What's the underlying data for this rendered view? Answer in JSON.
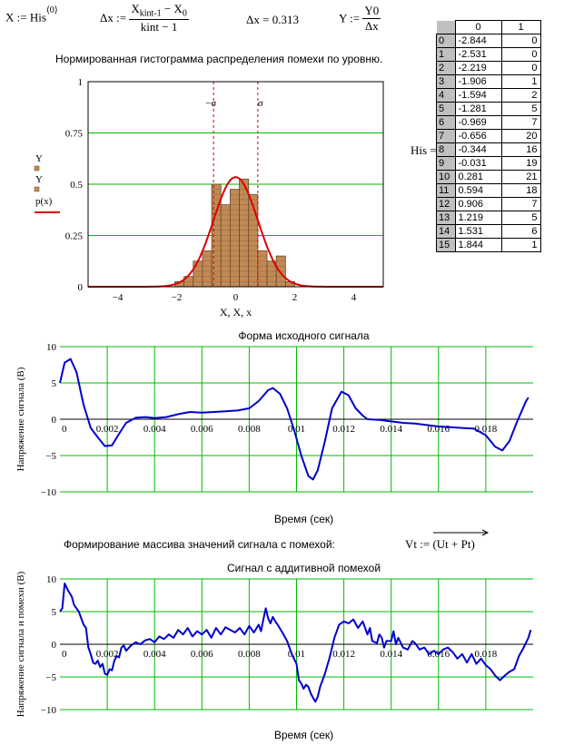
{
  "formulas": {
    "x_def_lhs": "X :=",
    "x_def_rhs": "His",
    "x_def_sup": "⟨0⟩",
    "dx_lhs": "Δx :=",
    "dx_num_a": "X",
    "dx_num_a_sub": "kint-1",
    "dx_num_b": " − X",
    "dx_num_b_sub": "0",
    "dx_den": "kint − 1",
    "dx_value": "Δx = 0.313",
    "y_lhs": "Y :=",
    "y_num": "Y0",
    "y_den": "Δx",
    "his_label": "His =",
    "vt_label": "Формирование массива значений сигнала с помехой:",
    "vt_lhs": "Vt :=",
    "vt_rhs": "(Ut + Pt)"
  },
  "histogram_title": "Нормированная гистограмма распределения помехи по уровню.",
  "his_table": {
    "col_headers": [
      "0",
      "1"
    ],
    "rows": [
      {
        "idx": "0",
        "c0": "-2.844",
        "c1": "0"
      },
      {
        "idx": "1",
        "c0": "-2.531",
        "c1": "0"
      },
      {
        "idx": "2",
        "c0": "-2.219",
        "c1": "0"
      },
      {
        "idx": "3",
        "c0": "-1.906",
        "c1": "1"
      },
      {
        "idx": "4",
        "c0": "-1.594",
        "c1": "2"
      },
      {
        "idx": "5",
        "c0": "-1.281",
        "c1": "5"
      },
      {
        "idx": "6",
        "c0": "-0.969",
        "c1": "7"
      },
      {
        "idx": "7",
        "c0": "-0.656",
        "c1": "20"
      },
      {
        "idx": "8",
        "c0": "-0.344",
        "c1": "16"
      },
      {
        "idx": "9",
        "c0": "-0.031",
        "c1": "19"
      },
      {
        "idx": "10",
        "c0": "0.281",
        "c1": "21"
      },
      {
        "idx": "11",
        "c0": "0.594",
        "c1": "18"
      },
      {
        "idx": "12",
        "c0": "0.906",
        "c1": "7"
      },
      {
        "idx": "13",
        "c0": "1.219",
        "c1": "5"
      },
      {
        "idx": "14",
        "c0": "1.531",
        "c1": "6"
      },
      {
        "idx": "15",
        "c0": "1.844",
        "c1": "1"
      }
    ]
  },
  "chart_data": [
    {
      "type": "bar",
      "title": "",
      "xlabel": "X, X, x",
      "ylabel_lines": [
        "Y",
        "Y",
        "p(x)"
      ],
      "xlim": [
        -5,
        5
      ],
      "ylim": [
        0,
        1
      ],
      "x_ticks": [
        "−4",
        "−2",
        "0",
        "2",
        "4"
      ],
      "y_ticks": [
        "0",
        "0.25",
        "0.5",
        "0.75",
        "1"
      ],
      "sigma_labels": [
        "−σ",
        "σ"
      ],
      "sigma": 0.75,
      "bars": [
        {
          "x": -1.906,
          "y": 0.025
        },
        {
          "x": -1.594,
          "y": 0.05
        },
        {
          "x": -1.281,
          "y": 0.125
        },
        {
          "x": -0.969,
          "y": 0.175
        },
        {
          "x": -0.656,
          "y": 0.5
        },
        {
          "x": -0.344,
          "y": 0.4
        },
        {
          "x": -0.031,
          "y": 0.475
        },
        {
          "x": 0.281,
          "y": 0.525
        },
        {
          "x": 0.594,
          "y": 0.45
        },
        {
          "x": 0.906,
          "y": 0.175
        },
        {
          "x": 1.219,
          "y": 0.125
        },
        {
          "x": 1.531,
          "y": 0.15
        },
        {
          "x": 1.844,
          "y": 0.025
        }
      ],
      "density_peak": 0.535,
      "colors": {
        "bar": "#c08a56",
        "curve": "#dd0000",
        "grid": "#00bb00",
        "sigma": "#cc0000"
      }
    },
    {
      "type": "line",
      "title": "Форма исходного сигнала",
      "xlabel": "Время (сек)",
      "ylabel": "Напряжение сигнала (В)",
      "xlim": [
        0,
        0.02
      ],
      "ylim": [
        -10,
        10
      ],
      "x_ticks": [
        "0",
        "0.002",
        "0.004",
        "0.006",
        "0.008",
        "0.01",
        "0.012",
        "0.014",
        "0.016",
        "0.018"
      ],
      "y_ticks": [
        "10",
        "5",
        "0",
        "−5",
        "−10"
      ],
      "points": [
        [
          0,
          5
        ],
        [
          0.0002,
          7.8
        ],
        [
          0.00045,
          8.3
        ],
        [
          0.0007,
          6.5
        ],
        [
          0.001,
          2
        ],
        [
          0.0013,
          -1.2
        ],
        [
          0.0016,
          -2.5
        ],
        [
          0.0019,
          -3.7
        ],
        [
          0.0022,
          -3.6
        ],
        [
          0.0025,
          -2
        ],
        [
          0.0028,
          -0.5
        ],
        [
          0.0032,
          0.2
        ],
        [
          0.0036,
          0.3
        ],
        [
          0.004,
          0.15
        ],
        [
          0.0045,
          0.3
        ],
        [
          0.005,
          0.7
        ],
        [
          0.0055,
          1
        ],
        [
          0.006,
          0.9
        ],
        [
          0.0065,
          1
        ],
        [
          0.007,
          1.1
        ],
        [
          0.0075,
          1.2
        ],
        [
          0.008,
          1.5
        ],
        [
          0.0084,
          2.5
        ],
        [
          0.0088,
          4
        ],
        [
          0.009,
          4.3
        ],
        [
          0.0093,
          3.5
        ],
        [
          0.0096,
          1.5
        ],
        [
          0.0099,
          -1.5
        ],
        [
          0.0102,
          -5
        ],
        [
          0.0105,
          -7.8
        ],
        [
          0.0107,
          -8.3
        ],
        [
          0.0109,
          -7
        ],
        [
          0.0112,
          -3
        ],
        [
          0.0115,
          1.5
        ],
        [
          0.0119,
          3.8
        ],
        [
          0.0122,
          3.3
        ],
        [
          0.0125,
          1.5
        ],
        [
          0.0128,
          0.5
        ],
        [
          0.013,
          0
        ],
        [
          0.0135,
          -0.1
        ],
        [
          0.014,
          -0.3
        ],
        [
          0.0145,
          -0.5
        ],
        [
          0.015,
          -0.6
        ],
        [
          0.0155,
          -0.8
        ],
        [
          0.016,
          -1
        ],
        [
          0.0165,
          -1.1
        ],
        [
          0.017,
          -1.2
        ],
        [
          0.0175,
          -1.3
        ],
        [
          0.018,
          -2.2
        ],
        [
          0.0184,
          -3.8
        ],
        [
          0.0187,
          -4.3
        ],
        [
          0.019,
          -3
        ],
        [
          0.0193,
          -0.5
        ],
        [
          0.0197,
          2.5
        ],
        [
          0.0198,
          3
        ]
      ],
      "colors": {
        "line": "#0000cc",
        "grid": "#00bb00"
      }
    },
    {
      "type": "line",
      "title": "Сигнал с аддитивной помехой",
      "xlabel": "Время (сек)",
      "ylabel": "Напряжение сигнала и помехи (В)",
      "xlim": [
        0,
        0.02
      ],
      "ylim": [
        -10,
        10
      ],
      "x_ticks": [
        "0",
        "0.002",
        "0.004",
        "0.006",
        "0.008",
        "0.01",
        "0.012",
        "0.014",
        "0.016",
        "0.018"
      ],
      "y_ticks": [
        "10",
        "5",
        "0",
        "−5",
        "−10"
      ],
      "points": [
        [
          0,
          5
        ],
        [
          0.0001,
          5.5
        ],
        [
          0.0002,
          9.3
        ],
        [
          0.00035,
          8.2
        ],
        [
          0.0005,
          7.3
        ],
        [
          0.0006,
          6
        ],
        [
          0.0008,
          5
        ],
        [
          0.001,
          3
        ],
        [
          0.0011,
          2.5
        ],
        [
          0.0012,
          -0.5
        ],
        [
          0.0013,
          -1.5
        ],
        [
          0.0014,
          -2.8
        ],
        [
          0.0015,
          -3
        ],
        [
          0.0016,
          -2.5
        ],
        [
          0.0017,
          -3.5
        ],
        [
          0.0018,
          -3
        ],
        [
          0.0019,
          -4.5
        ],
        [
          0.002,
          -4.7
        ],
        [
          0.0021,
          -3.8
        ],
        [
          0.0022,
          -4
        ],
        [
          0.0023,
          -2.5
        ],
        [
          0.0024,
          -1.8
        ],
        [
          0.0025,
          -2
        ],
        [
          0.0026,
          -0.5
        ],
        [
          0.0027,
          -0.2
        ],
        [
          0.0028,
          -1
        ],
        [
          0.003,
          -0.2
        ],
        [
          0.0032,
          0.3
        ],
        [
          0.0034,
          0
        ],
        [
          0.0036,
          0.6
        ],
        [
          0.0038,
          0.8
        ],
        [
          0.004,
          0.3
        ],
        [
          0.0042,
          1.2
        ],
        [
          0.0044,
          0.8
        ],
        [
          0.0046,
          1.5
        ],
        [
          0.0048,
          1
        ],
        [
          0.005,
          2.2
        ],
        [
          0.0052,
          1.5
        ],
        [
          0.0054,
          2.5
        ],
        [
          0.0056,
          1.2
        ],
        [
          0.0058,
          2
        ],
        [
          0.006,
          1.5
        ],
        [
          0.0062,
          2.2
        ],
        [
          0.0064,
          1
        ],
        [
          0.0066,
          2.5
        ],
        [
          0.0068,
          1.5
        ],
        [
          0.007,
          2.6
        ],
        [
          0.0072,
          2.2
        ],
        [
          0.0074,
          1.8
        ],
        [
          0.0076,
          2.5
        ],
        [
          0.0078,
          1.5
        ],
        [
          0.008,
          2.8
        ],
        [
          0.0082,
          1.8
        ],
        [
          0.0084,
          3
        ],
        [
          0.0085,
          2
        ],
        [
          0.0086,
          3.8
        ],
        [
          0.0087,
          5.5
        ],
        [
          0.0088,
          4
        ],
        [
          0.0089,
          3.2
        ],
        [
          0.009,
          4.2
        ],
        [
          0.0091,
          3.5
        ],
        [
          0.0092,
          3
        ],
        [
          0.0094,
          1.8
        ],
        [
          0.0096,
          0.5
        ],
        [
          0.0098,
          -1.5
        ],
        [
          0.01,
          -3
        ],
        [
          0.0101,
          -5.5
        ],
        [
          0.0102,
          -6
        ],
        [
          0.0103,
          -6.8
        ],
        [
          0.0104,
          -6.2
        ],
        [
          0.0105,
          -6.5
        ],
        [
          0.0106,
          -7.5
        ],
        [
          0.0107,
          -8.2
        ],
        [
          0.0108,
          -8.8
        ],
        [
          0.0109,
          -8
        ],
        [
          0.011,
          -6.5
        ],
        [
          0.0112,
          -4.5
        ],
        [
          0.0114,
          -2
        ],
        [
          0.0116,
          1
        ],
        [
          0.0118,
          3
        ],
        [
          0.012,
          3.5
        ],
        [
          0.0122,
          3.2
        ],
        [
          0.0124,
          3.8
        ],
        [
          0.0126,
          2.5
        ],
        [
          0.0128,
          3.5
        ],
        [
          0.013,
          1.5
        ],
        [
          0.0131,
          2.5
        ],
        [
          0.0132,
          0.5
        ],
        [
          0.0134,
          0.2
        ],
        [
          0.0135,
          1.5
        ],
        [
          0.0136,
          1
        ],
        [
          0.0137,
          -0.5
        ],
        [
          0.0138,
          0.5
        ],
        [
          0.014,
          0.5
        ],
        [
          0.0141,
          2
        ],
        [
          0.0142,
          0
        ],
        [
          0.0143,
          1
        ],
        [
          0.0145,
          -0.5
        ],
        [
          0.0147,
          -0.8
        ],
        [
          0.0149,
          0.5
        ],
        [
          0.015,
          0.2
        ],
        [
          0.0152,
          -0.8
        ],
        [
          0.0154,
          -0.5
        ],
        [
          0.0156,
          -1.5
        ],
        [
          0.0158,
          -1
        ],
        [
          0.016,
          -1.5
        ],
        [
          0.0162,
          -0.8
        ],
        [
          0.0164,
          -0.5
        ],
        [
          0.0166,
          -1.2
        ],
        [
          0.0168,
          -2.2
        ],
        [
          0.017,
          -1.5
        ],
        [
          0.0172,
          -2.8
        ],
        [
          0.0174,
          -1.5
        ],
        [
          0.0176,
          -3
        ],
        [
          0.0178,
          -2.2
        ],
        [
          0.018,
          -3.2
        ],
        [
          0.0182,
          -3.8
        ],
        [
          0.0184,
          -4.8
        ],
        [
          0.0186,
          -5.5
        ],
        [
          0.0188,
          -4.8
        ],
        [
          0.019,
          -4.2
        ],
        [
          0.0192,
          -3.8
        ],
        [
          0.0194,
          -1.8
        ],
        [
          0.0196,
          -0.5
        ],
        [
          0.0198,
          1
        ],
        [
          0.0199,
          2.2
        ]
      ],
      "colors": {
        "line": "#0000cc",
        "grid": "#00bb00"
      }
    }
  ]
}
